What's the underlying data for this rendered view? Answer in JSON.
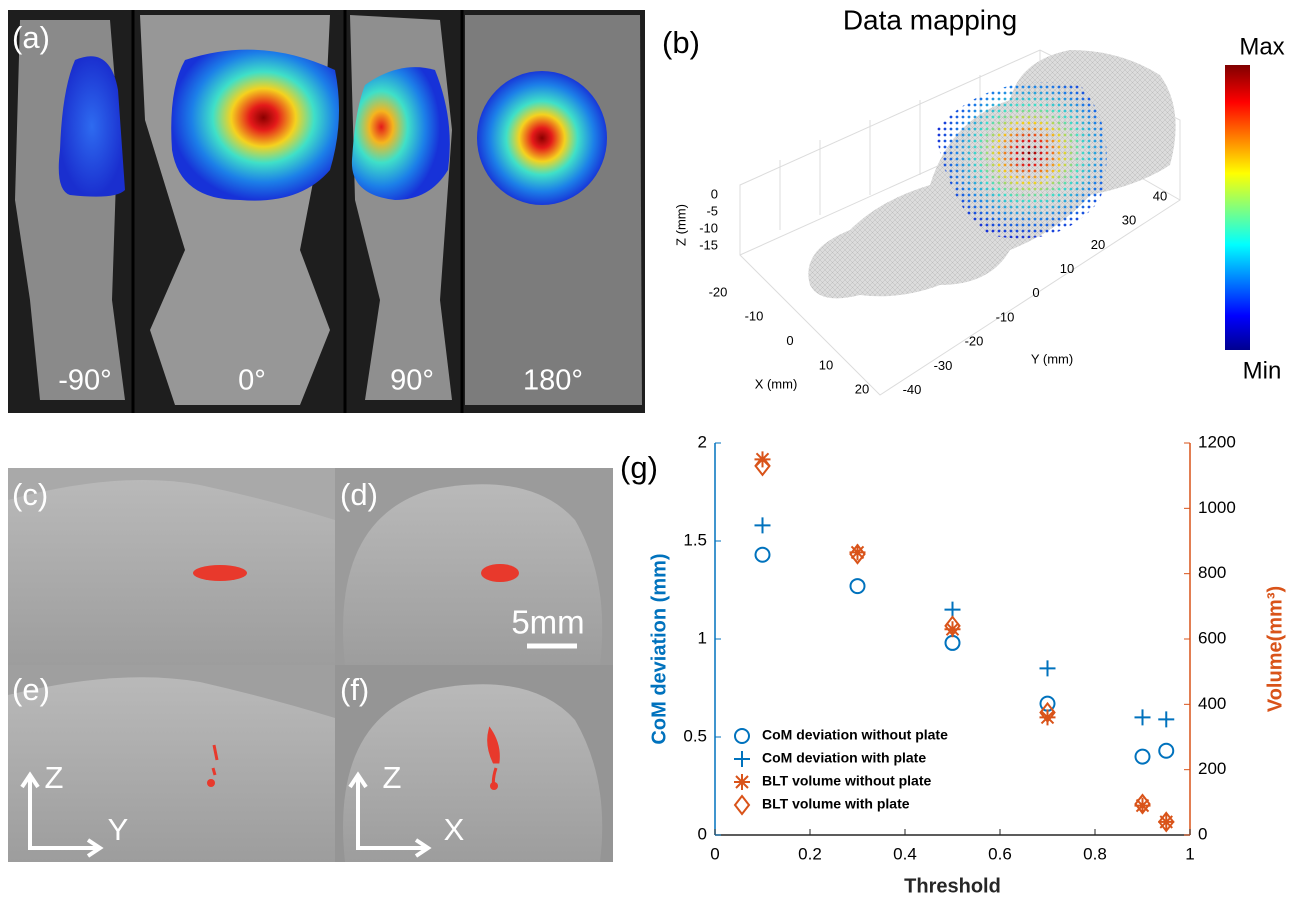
{
  "panels": {
    "a": {
      "label": "(a)",
      "angles": [
        "-90°",
        "0°",
        "90°",
        "180°"
      ]
    },
    "b": {
      "label": "(b)",
      "title": "Data mapping",
      "colorbar_max": "Max",
      "colorbar_min": "Min",
      "z_label": "Z (mm)",
      "y_label": "Y (mm)",
      "x_label": "X (mm)",
      "z_ticks": [
        0,
        -5,
        -10,
        -15
      ],
      "y_ticks": [
        40,
        30,
        20,
        10,
        0,
        -10,
        -20,
        -30,
        -40
      ],
      "x_ticks": [
        -20,
        -10,
        0,
        10,
        20
      ]
    },
    "c": {
      "label": "(c)"
    },
    "d": {
      "label": "(d)",
      "scale": "5mm"
    },
    "e": {
      "label": "(e)",
      "axes": [
        "Z",
        "Y"
      ]
    },
    "f": {
      "label": "(f)",
      "axes": [
        "Z",
        "X"
      ]
    },
    "g": {
      "label": "(g)"
    }
  },
  "chart_data": {
    "type": "scatter",
    "x": [
      0.1,
      0.3,
      0.5,
      0.7,
      0.9,
      0.95
    ],
    "series": [
      {
        "name": "CoM deviation without plate",
        "color": "#0072BD",
        "marker": "o",
        "values": [
          1.43,
          1.27,
          0.98,
          0.67,
          0.4,
          0.43
        ]
      },
      {
        "name": "CoM deviation with plate",
        "color": "#0072BD",
        "marker": "+",
        "values": [
          1.58,
          null,
          1.15,
          0.85,
          0.6,
          0.59
        ]
      },
      {
        "name": "BLT volume without plate",
        "color": "#D95319",
        "marker": "*",
        "axis": "y2",
        "values": [
          1150,
          865,
          630,
          360,
          90,
          40
        ]
      },
      {
        "name": "BLT volume with plate",
        "color": "#D95319",
        "marker": "d",
        "axis": "y2",
        "values": [
          1130,
          860,
          640,
          375,
          95,
          40
        ]
      }
    ],
    "xlabel": "Threshold",
    "ylabel": "CoM deviation (mm)",
    "y2label": "Volume(mm³)",
    "xlim": [
      0,
      1
    ],
    "xticks": [
      0,
      0.2,
      0.4,
      0.6,
      0.8,
      1
    ],
    "ylim": [
      0,
      2
    ],
    "yticks": [
      0,
      0.5,
      1,
      1.5,
      2
    ],
    "y2lim": [
      0,
      1200
    ],
    "y2ticks": [
      0,
      200,
      400,
      600,
      800,
      1000,
      1200
    ],
    "y_color": "#0072BD",
    "y2_color": "#D95319",
    "legend": "lower left"
  }
}
